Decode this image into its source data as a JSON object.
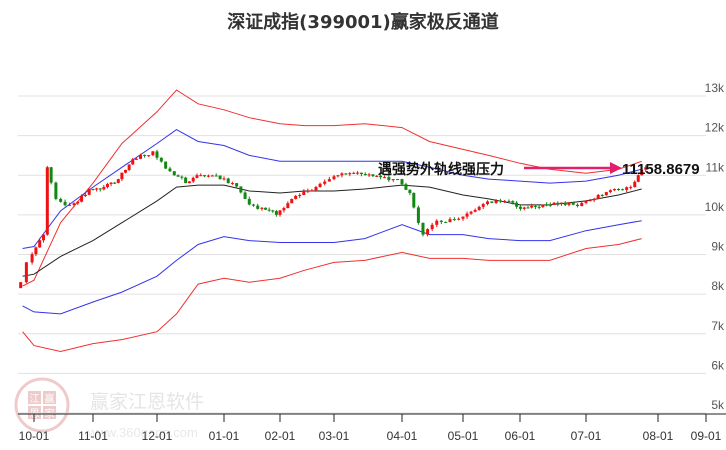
{
  "title": "深证成指(399001)赢家极反通道",
  "annotation": {
    "label": "遇强势外轨线强压力",
    "value": "11158.8679",
    "arrow_color": "#e0206a"
  },
  "watermark": {
    "brand": "赢家江恩软件",
    "url": "www.360gann.com",
    "logo_chars": [
      "江",
      "赢",
      "恩",
      "家"
    ]
  },
  "colors": {
    "outer_band": "#f03030",
    "inner_band": "#3333ee",
    "mid_line": "#222222",
    "up_candle": "#ee1111",
    "down_candle": "#118811",
    "grid": "#e0e0e0"
  },
  "chart_data": {
    "type": "candlestick",
    "title": "深证成指(399001)赢家极反通道",
    "xlabel": "",
    "ylabel": "",
    "ylim": [
      5000,
      13500
    ],
    "grid": true,
    "y_ticks": [
      "13k",
      "12k",
      "11k",
      "10k",
      "9k",
      "8k",
      "7k",
      "6k",
      "5k"
    ],
    "x_ticks": [
      "10-01",
      "11-01",
      "12-01",
      "01-01",
      "02-01",
      "03-01",
      "04-01",
      "05-01",
      "06-01",
      "07-01",
      "08-01",
      "09-01"
    ],
    "series": [
      {
        "name": "outer_upper",
        "color": "#f03030",
        "x": [
          "09-25",
          "10-01",
          "10-15",
          "11-01",
          "11-15",
          "12-01",
          "12-10",
          "12-20",
          "01-01",
          "01-15",
          "02-01",
          "02-15",
          "03-01",
          "03-15",
          "04-01",
          "04-15",
          "05-01",
          "05-15",
          "06-01",
          "06-15",
          "07-01",
          "07-15",
          "07-25"
        ],
        "values": [
          8000,
          8150,
          9600,
          10600,
          11600,
          12400,
          12950,
          12600,
          12450,
          12250,
          12100,
          12050,
          12050,
          12100,
          12000,
          11650,
          11450,
          11300,
          11100,
          10950,
          10850,
          10950,
          11150
        ]
      },
      {
        "name": "inner_upper",
        "color": "#3333ee",
        "x": [
          "09-25",
          "10-01",
          "10-15",
          "11-01",
          "11-15",
          "12-01",
          "12-10",
          "12-20",
          "01-01",
          "01-15",
          "02-01",
          "02-15",
          "03-01",
          "03-15",
          "04-01",
          "04-15",
          "05-01",
          "05-15",
          "06-01",
          "06-15",
          "07-01",
          "07-15",
          "07-25"
        ],
        "values": [
          8950,
          9000,
          9900,
          10500,
          11000,
          11600,
          11950,
          11650,
          11550,
          11300,
          11150,
          11150,
          11150,
          11150,
          11150,
          11000,
          10800,
          10700,
          10650,
          10600,
          10650,
          10800,
          10950
        ]
      },
      {
        "name": "middle",
        "color": "#222222",
        "x": [
          "09-25",
          "10-01",
          "10-15",
          "11-01",
          "11-15",
          "12-01",
          "12-10",
          "12-20",
          "01-01",
          "01-15",
          "02-01",
          "02-15",
          "03-01",
          "03-15",
          "04-01",
          "04-15",
          "05-01",
          "05-15",
          "06-01",
          "06-15",
          "07-01",
          "07-15",
          "07-25"
        ],
        "values": [
          8250,
          8300,
          8750,
          9150,
          9600,
          10150,
          10500,
          10550,
          10550,
          10400,
          10350,
          10400,
          10400,
          10450,
          10550,
          10500,
          10300,
          10200,
          10050,
          10050,
          10150,
          10300,
          10450
        ]
      },
      {
        "name": "inner_lower",
        "color": "#3333ee",
        "x": [
          "09-25",
          "10-01",
          "10-15",
          "11-01",
          "11-15",
          "12-01",
          "12-10",
          "12-20",
          "01-01",
          "01-15",
          "02-01",
          "02-15",
          "03-01",
          "03-15",
          "04-01",
          "04-15",
          "05-01",
          "05-15",
          "06-01",
          "06-15",
          "07-01",
          "07-15",
          "07-25"
        ],
        "values": [
          7500,
          7350,
          7300,
          7600,
          7850,
          8250,
          8650,
          9050,
          9250,
          9150,
          9100,
          9100,
          9100,
          9200,
          9550,
          9300,
          9300,
          9200,
          9150,
          9150,
          9400,
          9550,
          9650
        ]
      },
      {
        "name": "outer_lower",
        "color": "#f03030",
        "x": [
          "09-25",
          "10-01",
          "10-15",
          "11-01",
          "11-15",
          "12-01",
          "12-10",
          "12-20",
          "01-01",
          "01-15",
          "02-01",
          "02-15",
          "03-01",
          "03-15",
          "04-01",
          "04-15",
          "05-01",
          "05-15",
          "06-01",
          "06-15",
          "07-01",
          "07-15",
          "07-25"
        ],
        "values": [
          6850,
          6500,
          6350,
          6550,
          6650,
          6850,
          7300,
          8050,
          8200,
          8100,
          8200,
          8400,
          8600,
          8650,
          8850,
          8700,
          8700,
          8650,
          8650,
          8650,
          8950,
          9050,
          9200
        ]
      },
      {
        "name": "close",
        "color": "#ee1111",
        "x": [
          "09-24",
          "09-27",
          "09-30",
          "10-08",
          "10-10",
          "10-15",
          "10-22",
          "11-01",
          "11-08",
          "11-15",
          "11-22",
          "12-01",
          "12-09",
          "12-16",
          "12-23",
          "01-01",
          "01-08",
          "01-15",
          "01-22",
          "02-01",
          "02-10",
          "02-17",
          "02-24",
          "03-01",
          "03-10",
          "03-17",
          "03-24",
          "04-01",
          "04-07",
          "04-14",
          "04-21",
          "05-01",
          "05-12",
          "05-19",
          "05-26",
          "06-03",
          "06-10",
          "06-17",
          "06-24",
          "07-01",
          "07-08",
          "07-15",
          "07-22",
          "07-25"
        ],
        "values": [
          8100,
          8600,
          9300,
          11000,
          10200,
          10050,
          10450,
          10500,
          10700,
          11200,
          11400,
          10900,
          10600,
          10800,
          10700,
          10600,
          10200,
          9950,
          9800,
          10200,
          10400,
          10500,
          10700,
          10850,
          10800,
          10750,
          10700,
          10350,
          9300,
          9650,
          9700,
          10000,
          10100,
          10150,
          9950,
          10000,
          10050,
          10050,
          10100,
          10300,
          10450,
          10500,
          10800,
          11000
        ]
      }
    ],
    "annotations": [
      {
        "text": "遇强势外轨线强压力",
        "value": 11158.8679,
        "arrow": "right"
      }
    ]
  }
}
